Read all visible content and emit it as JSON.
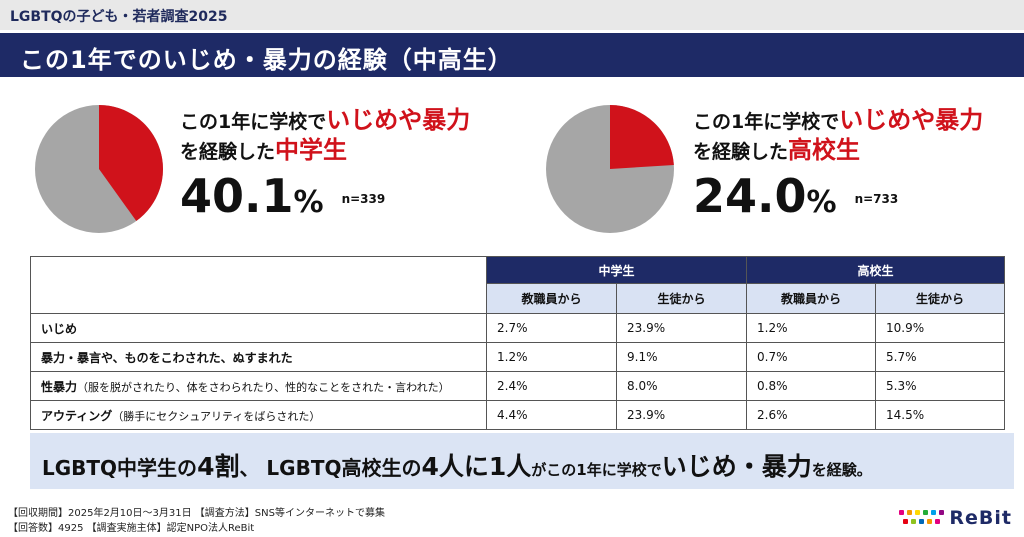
{
  "header": {
    "survey_label": "LGBTQの子ども・若者調査2025",
    "title": "この1年でのいじめ・暴力の経験（中高生）"
  },
  "stats": [
    {
      "line1_pre": "この1年に学校で",
      "line1_red": "いじめや暴力",
      "line2_pre": "を経験した",
      "line2_red": "中学生",
      "value": "40.1",
      "unit": "%",
      "n": "n=339",
      "fraction": 0.401
    },
    {
      "line1_pre": "この1年に学校で",
      "line1_red": "いじめや暴力",
      "line2_pre": "を経験した",
      "line2_red": "高校生",
      "value": "24.0",
      "unit": "%",
      "n": "n=733",
      "fraction": 0.24
    }
  ],
  "colors": {
    "accent_red": "#d0121b",
    "pie_gray": "#a6a6a6",
    "navy": "#1e2a66",
    "light_blue": "#d9e2f3"
  },
  "table": {
    "groups": [
      "中学生",
      "高校生"
    ],
    "subheaders": [
      "教職員から",
      "生徒から",
      "教職員から",
      "生徒から"
    ],
    "rows": [
      {
        "label": "いじめ",
        "note": "",
        "values": [
          "2.7%",
          "23.9%",
          "1.2%",
          "10.9%"
        ]
      },
      {
        "label": "暴力・暴言や、ものをこわされた、ぬすまれた",
        "note": "",
        "values": [
          "1.2%",
          "9.1%",
          "0.7%",
          "5.7%"
        ]
      },
      {
        "label": "性暴力",
        "note": "（服を脱がされたり、体をさわられたり、性的なことをされた・言われた）",
        "values": [
          "2.4%",
          "8.0%",
          "0.8%",
          "5.3%"
        ]
      },
      {
        "label": "アウティング",
        "note": "（勝手にセクシュアリティをばらされた）",
        "values": [
          "4.4%",
          "23.9%",
          "2.6%",
          "14.5%"
        ]
      }
    ]
  },
  "summary": {
    "p1": "LGBTQ中学生の",
    "p2": "4割",
    "p3": "、 LGBTQ高校生の",
    "p4": "4人に1人",
    "p5": "がこの1年に学校で",
    "p6": "いじめ・暴力",
    "p7": "を経験。"
  },
  "footer": {
    "line1": "【回収期間】2025年2月10日～3月31日 【調査方法】SNS等インターネットで募集",
    "line2": "【回答数】4925 【調査実施主体】認定NPO法人ReBit"
  },
  "logo": {
    "text": "ReBit",
    "icon": "rebit-dots-logo"
  }
}
